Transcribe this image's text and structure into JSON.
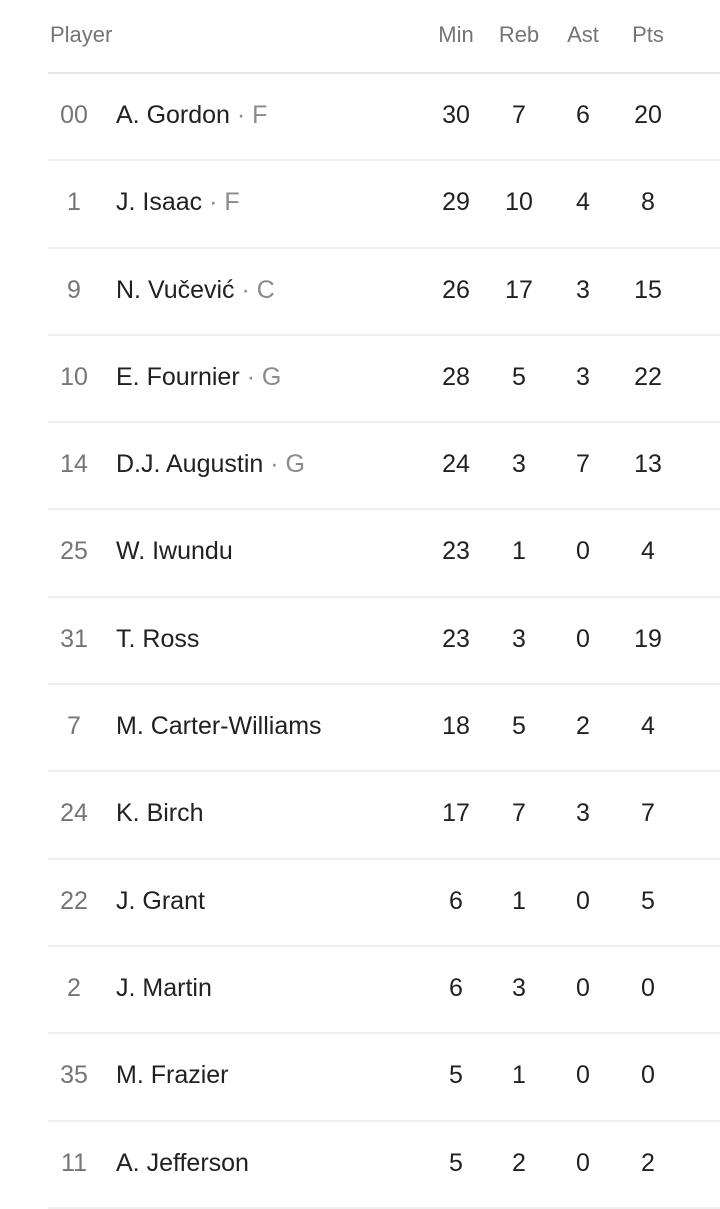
{
  "header": {
    "player": "Player",
    "columns": [
      "Min",
      "Reb",
      "Ast",
      "Pts"
    ]
  },
  "players": [
    {
      "number": "00",
      "name": "A. Gordon",
      "position": "F",
      "min": "30",
      "reb": "7",
      "ast": "6",
      "pts": "20"
    },
    {
      "number": "1",
      "name": "J. Isaac",
      "position": "F",
      "min": "29",
      "reb": "10",
      "ast": "4",
      "pts": "8"
    },
    {
      "number": "9",
      "name": "N. Vučević",
      "position": "C",
      "min": "26",
      "reb": "17",
      "ast": "3",
      "pts": "15"
    },
    {
      "number": "10",
      "name": "E. Fournier",
      "position": "G",
      "min": "28",
      "reb": "5",
      "ast": "3",
      "pts": "22"
    },
    {
      "number": "14",
      "name": "D.J. Augustin",
      "position": "G",
      "min": "24",
      "reb": "3",
      "ast": "7",
      "pts": "13"
    },
    {
      "number": "25",
      "name": "W. Iwundu",
      "position": "",
      "min": "23",
      "reb": "1",
      "ast": "0",
      "pts": "4"
    },
    {
      "number": "31",
      "name": "T. Ross",
      "position": "",
      "min": "23",
      "reb": "3",
      "ast": "0",
      "pts": "19"
    },
    {
      "number": "7",
      "name": "M. Carter-Williams",
      "position": "",
      "min": "18",
      "reb": "5",
      "ast": "2",
      "pts": "4"
    },
    {
      "number": "24",
      "name": "K. Birch",
      "position": "",
      "min": "17",
      "reb": "7",
      "ast": "3",
      "pts": "7"
    },
    {
      "number": "22",
      "name": "J. Grant",
      "position": "",
      "min": "6",
      "reb": "1",
      "ast": "0",
      "pts": "5"
    },
    {
      "number": "2",
      "name": "J. Martin",
      "position": "",
      "min": "6",
      "reb": "3",
      "ast": "0",
      "pts": "0"
    },
    {
      "number": "35",
      "name": "M. Frazier",
      "position": "",
      "min": "5",
      "reb": "1",
      "ast": "0",
      "pts": "0"
    },
    {
      "number": "11",
      "name": "A. Jefferson",
      "position": "",
      "min": "5",
      "reb": "2",
      "ast": "0",
      "pts": "2"
    }
  ]
}
